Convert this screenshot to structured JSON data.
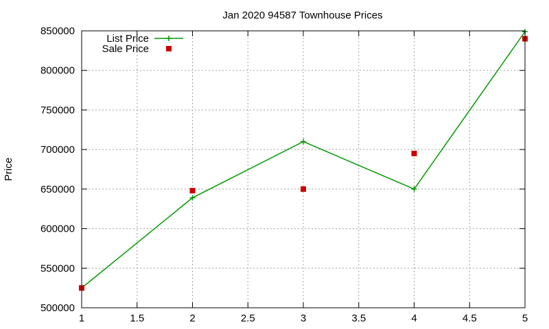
{
  "chart_data": {
    "type": "line",
    "title": "Jan 2020 94587 Townhouse Prices",
    "xlabel": "",
    "ylabel": "Price",
    "xlim": [
      1,
      5
    ],
    "ylim": [
      500000,
      850000
    ],
    "xticks": [
      "1",
      "1.5",
      "2",
      "2.5",
      "3",
      "3.5",
      "4",
      "4.5",
      "5"
    ],
    "yticks": [
      "500000",
      "550000",
      "600000",
      "650000",
      "700000",
      "750000",
      "800000",
      "850000"
    ],
    "grid": true,
    "legend_position": "top-left",
    "series": [
      {
        "name": "List Price",
        "style": "line-with-plus-markers",
        "color": "#009900",
        "x": [
          1,
          2,
          3,
          4,
          5
        ],
        "y": [
          525000,
          639000,
          710000,
          650000,
          849000
        ]
      },
      {
        "name": "Sale Price",
        "style": "square-markers",
        "color": "#cc0000",
        "x": [
          1,
          2,
          3,
          4,
          5
        ],
        "y": [
          525000,
          648000,
          650000,
          695000,
          840000
        ]
      }
    ]
  }
}
